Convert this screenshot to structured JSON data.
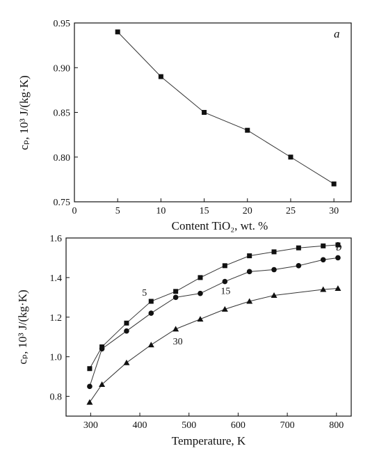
{
  "chart_data": [
    {
      "type": "line",
      "panel_label": "a",
      "xlabel": "Content TiO₂, wt. %",
      "ylabel": "cₚ, 10³ J/(kg·K)",
      "xlim": [
        0,
        32
      ],
      "ylim": [
        0.75,
        0.95
      ],
      "xticks": [
        0,
        5,
        10,
        15,
        20,
        25,
        30
      ],
      "xtick_labels": [
        "0",
        "5",
        "10",
        "15",
        "20",
        "25",
        "30"
      ],
      "yticks": [
        0.75,
        0.8,
        0.85,
        0.9,
        0.95
      ],
      "ytick_labels": [
        "0.75",
        "0.80",
        "0.85",
        "0.90",
        "0.95"
      ],
      "series": [
        {
          "marker": "square",
          "x": [
            5,
            10,
            15,
            20,
            25,
            30
          ],
          "y": [
            0.94,
            0.89,
            0.85,
            0.83,
            0.8,
            0.77
          ]
        }
      ]
    },
    {
      "type": "line",
      "panel_label": "b",
      "xlabel": "Temperature, K",
      "ylabel": "cₚ, 10³ J/(kg·K)",
      "xlim": [
        250,
        830
      ],
      "ylim": [
        0.7,
        1.6
      ],
      "xticks": [
        300,
        400,
        500,
        600,
        700,
        800
      ],
      "xtick_labels": [
        "300",
        "400",
        "500",
        "600",
        "700",
        "800"
      ],
      "yticks": [
        0.8,
        1.0,
        1.2,
        1.4,
        1.6
      ],
      "ytick_labels": [
        "0.8",
        "1.0",
        "1.2",
        "1.4",
        "1.6"
      ],
      "series": [
        {
          "label": "5",
          "marker": "square",
          "x": [
            298,
            323,
            373,
            423,
            473,
            523,
            573,
            623,
            673,
            723,
            773,
            803
          ],
          "y": [
            0.94,
            1.05,
            1.17,
            1.28,
            1.33,
            1.4,
            1.46,
            1.51,
            1.53,
            1.55,
            1.56,
            1.565
          ]
        },
        {
          "label": "15",
          "marker": "circle",
          "x": [
            298,
            323,
            373,
            423,
            473,
            523,
            573,
            623,
            673,
            723,
            773,
            803
          ],
          "y": [
            0.85,
            1.04,
            1.13,
            1.22,
            1.3,
            1.32,
            1.38,
            1.43,
            1.44,
            1.46,
            1.49,
            1.5
          ]
        },
        {
          "label": "30",
          "marker": "triangle",
          "x": [
            298,
            323,
            373,
            423,
            473,
            523,
            573,
            623,
            673,
            773,
            803
          ],
          "y": [
            0.77,
            0.86,
            0.97,
            1.06,
            1.14,
            1.19,
            1.24,
            1.28,
            1.31,
            1.34,
            1.345
          ]
        }
      ]
    }
  ]
}
